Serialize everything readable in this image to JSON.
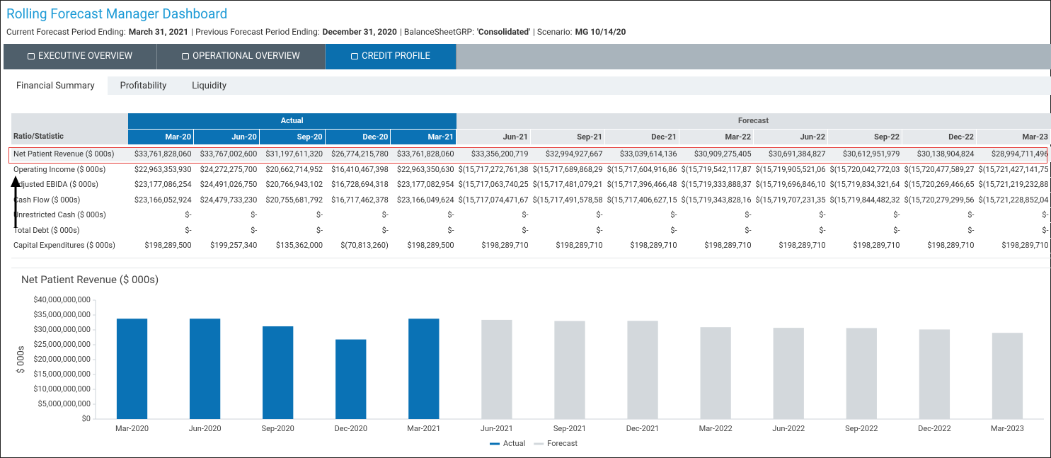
{
  "header": {
    "title": "Rolling Forecast Manager Dashboard",
    "subtitle": [
      {
        "text": "Current Forecast Period Ending:",
        "bold": false
      },
      {
        "text": "March 31, 2021",
        "bold": true
      },
      {
        "text": "| Previous Forecast Period Ending:",
        "bold": false
      },
      {
        "text": "December 31, 2020",
        "bold": true
      },
      {
        "text": "| BalanceSheetGRP:",
        "bold": false
      },
      {
        "text": "'Consolidated'",
        "bold": true
      },
      {
        "text": "| Scenario:",
        "bold": false
      },
      {
        "text": "MG 10/14/20",
        "bold": true
      }
    ]
  },
  "nav": {
    "tabs": [
      "EXECUTIVE OVERVIEW",
      "OPERATIONAL OVERVIEW",
      "CREDIT PROFILE"
    ],
    "active": 2
  },
  "subnav": {
    "tabs": [
      "Financial Summary",
      "Profitability",
      "Liquidity"
    ],
    "active": 0
  },
  "table": {
    "header": "Ratio/Statistic",
    "groups": [
      {
        "label": "Actual",
        "span": 5
      },
      {
        "label": "Forecast",
        "span": 8
      }
    ],
    "columns": [
      "Mar-20",
      "Jun-20",
      "Sep-20",
      "Dec-20",
      "Mar-21",
      "Jun-21",
      "Sep-21",
      "Dec-21",
      "Mar-22",
      "Jun-22",
      "Sep-22",
      "Dec-22",
      "Mar-23"
    ],
    "highlight_row": 0,
    "rows": [
      {
        "label": "Net Patient Revenue ($ 000s)",
        "cells": [
          "$33,761,828,060",
          "$33,767,002,600",
          "$31,197,611,320",
          "$26,774,215,780",
          "$33,761,828,060",
          "$33,356,200,719",
          "$32,994,927,667",
          "$33,039,614,136",
          "$30,909,275,405",
          "$30,691,384,827",
          "$30,612,951,979",
          "$30,138,904,824",
          "$28,994,711,496"
        ]
      },
      {
        "label": "Operating Income ($ 000s)",
        "cells": [
          "$22,963,353,930",
          "$24,272,275,700",
          "$20,662,714,952",
          "$16,410,467,398",
          "$22,963,350,630",
          "$(15,717,272,761,38",
          "$(15,717,689,868,29",
          "$(15,717,604,916,86",
          "$(15,719,542,117,87",
          "$(15,719,905,521,06",
          "$(15,720,042,772,03",
          "$(15,720,477,589,27",
          "$(15,721,427,141,75"
        ]
      },
      {
        "label": "Adjusted EBIDA ($ 000s)",
        "cells": [
          "$23,177,086,254",
          "$24,491,026,750",
          "$20,766,943,102",
          "$16,728,694,318",
          "$23,177,082,954",
          "$(15,717,063,740,25",
          "$(15,717,481,079,21",
          "$(15,717,396,466,48",
          "$(15,719,333,888,37",
          "$(15,719,696,846,10",
          "$(15,719,834,321,64",
          "$(15,720,269,466,65",
          "$(15,721,219,232,88"
        ]
      },
      {
        "label": "Cash Flow ($ 000s)",
        "cells": [
          "$23,166,052,924",
          "$24,479,733,230",
          "$20,755,681,792",
          "$16,717,462,378",
          "$23,166,049,624",
          "$(15,717,074,471,67",
          "$(15,717,491,578,58",
          "$(15,717,406,627,15",
          "$(15,719,343,828,16",
          "$(15,719,707,231,35",
          "$(15,719,844,482,32",
          "$(15,720,279,299,56",
          "$(15,721,228,852,04"
        ]
      },
      {
        "label": "Unrestricted Cash ($ 000s)",
        "cells": [
          "$-",
          "$-",
          "$-",
          "$-",
          "$-",
          "$-",
          "$-",
          "$-",
          "$-",
          "$-",
          "$-",
          "$-",
          "$-"
        ]
      },
      {
        "label": "Total Debt ($ 000s)",
        "cells": [
          "$-",
          "$-",
          "$-",
          "$-",
          "$-",
          "$-",
          "$-",
          "$-",
          "$-",
          "$-",
          "$-",
          "$-",
          "$-"
        ]
      },
      {
        "label": "Capital Expenditures ($ 000s)",
        "cells": [
          "$198,289,500",
          "$199,257,340",
          "$135,362,000",
          "$(70,813,260)",
          "$198,289,500",
          "$198,289,710",
          "$198,289,710",
          "$198,289,710",
          "$198,289,710",
          "$198,289,710",
          "$198,289,710",
          "$198,289,710",
          "$198,289,710"
        ]
      }
    ]
  },
  "chart_data": {
    "type": "bar",
    "title": "Net Patient Revenue ($ 000s)",
    "y_label": "$ 000s",
    "categories": [
      "Mar-2020",
      "Jun-2020",
      "Sep-2020",
      "Dec-2020",
      "Mar-2021",
      "Jun-2021",
      "Sep-2021",
      "Dec-2021",
      "Mar-2022",
      "Jun-2022",
      "Sep-2022",
      "Dec-2022",
      "Mar-2023"
    ],
    "series": [
      {
        "name": "Actual",
        "color": "#0a72b5",
        "values": [
          33761828060,
          33767002600,
          31197611320,
          26774215780,
          33761828060,
          null,
          null,
          null,
          null,
          null,
          null,
          null,
          null
        ]
      },
      {
        "name": "Forecast",
        "color": "#d3d8dc",
        "values": [
          null,
          null,
          null,
          null,
          null,
          33356200719,
          32994927667,
          33039614136,
          30909275405,
          30691384827,
          30612951979,
          30138904824,
          28994711496
        ]
      }
    ],
    "ylim": [
      0,
      40000000000
    ],
    "yticks": [
      {
        "value": 0,
        "label": "$0"
      },
      {
        "value": 5000000000,
        "label": "$5,000,000,000"
      },
      {
        "value": 10000000000,
        "label": "$10,000,000,000"
      },
      {
        "value": 15000000000,
        "label": "$15,000,000,000"
      },
      {
        "value": 20000000000,
        "label": "$20,000,000,000"
      },
      {
        "value": 25000000000,
        "label": "$25,000,000,000"
      },
      {
        "value": 30000000000,
        "label": "$30,000,000,000"
      },
      {
        "value": 35000000000,
        "label": "$35,000,000,000"
      },
      {
        "value": 40000000000,
        "label": "$40,000,000,000"
      }
    ],
    "grid": false,
    "legend": "bottom"
  }
}
